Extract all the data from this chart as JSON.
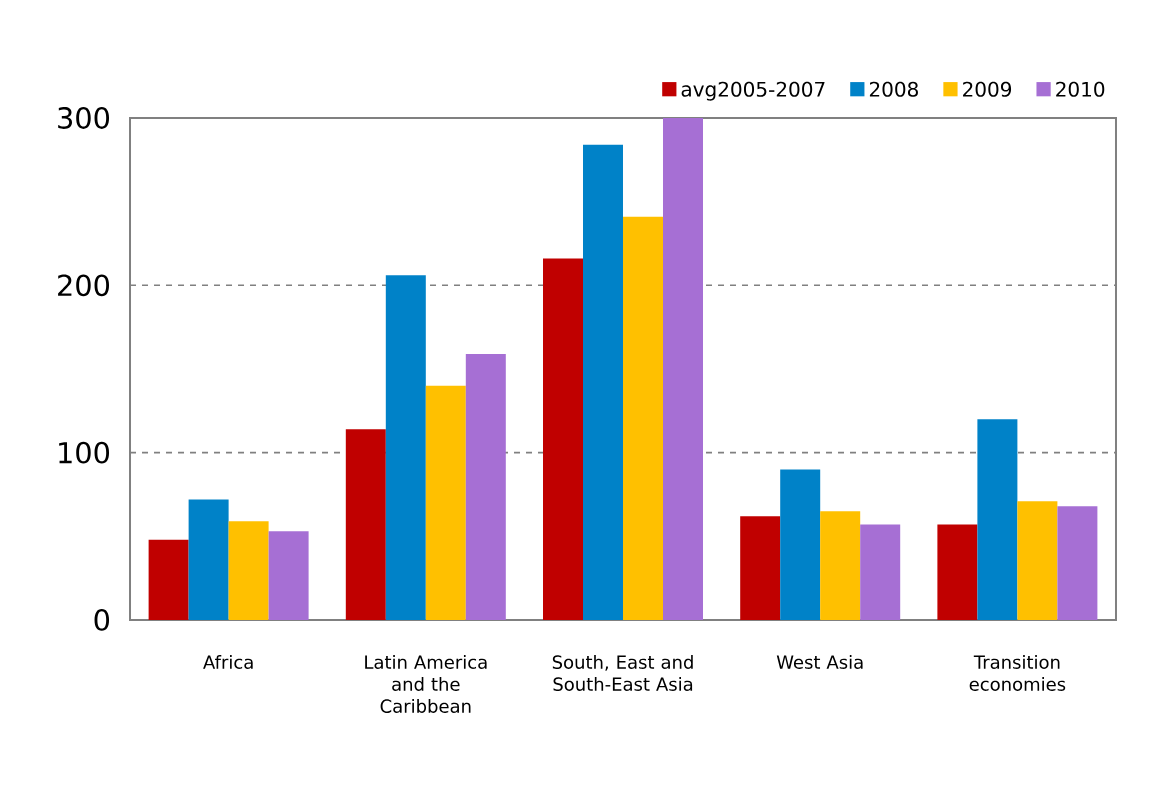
{
  "chart_data": {
    "type": "bar",
    "categories": [
      "Africa",
      "Latin America and the Caribbean",
      "South, East and South-East Asia",
      "West Asia",
      "Transition economies"
    ],
    "series": [
      {
        "name": "avg2005-2007",
        "color": "#c00000",
        "values": [
          48,
          114,
          216,
          62,
          57
        ]
      },
      {
        "name": "2008",
        "color": "#0082c8",
        "values": [
          72,
          206,
          284,
          90,
          120
        ]
      },
      {
        "name": "2009",
        "color": "#ffc000",
        "values": [
          59,
          140,
          241,
          65,
          71
        ]
      },
      {
        "name": "2010",
        "color": "#a66fd4",
        "values": [
          53,
          159,
          300,
          57,
          68
        ]
      }
    ],
    "ylim": [
      0,
      300
    ],
    "yticks": [
      0,
      100,
      200,
      300
    ],
    "grid": "y",
    "legend": "top right"
  }
}
